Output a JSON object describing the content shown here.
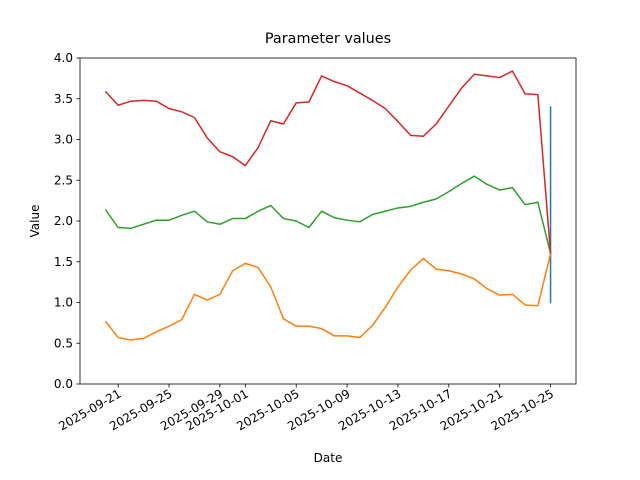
{
  "chart_data": {
    "type": "line",
    "title": "Parameter values",
    "x_label": "Date",
    "y_label": "Value",
    "xlim": [
      "2025-09-18",
      "2025-10-27"
    ],
    "ylim": [
      0,
      4
    ],
    "xticks": [
      "2025-09-21",
      "2025-09-25",
      "2025-09-29",
      "2025-10-01",
      "2025-10-05",
      "2025-10-09",
      "2025-10-13",
      "2025-10-17",
      "2025-10-21",
      "2025-10-25"
    ],
    "yticks": [
      {
        "value": 0,
        "label": "0.0"
      },
      {
        "value": 0.5,
        "label": "0.5"
      },
      {
        "value": 1,
        "label": "1.0"
      },
      {
        "value": 1.5,
        "label": "1.5"
      },
      {
        "value": 2,
        "label": "2.0"
      },
      {
        "value": 2.5,
        "label": "2.5"
      },
      {
        "value": 3,
        "label": "3.0"
      },
      {
        "value": 3.5,
        "label": "3.5"
      },
      {
        "value": 4,
        "label": "4.0"
      }
    ],
    "grid": false,
    "series": [
      {
        "color": "#1f77b4",
        "x": [
          "2025-10-25",
          "2025-10-25",
          "2025-10-25",
          "2025-10-25"
        ],
        "values": [
          1.28,
          1.0,
          3.4,
          3.0
        ]
      },
      {
        "color": "#ff7f0e",
        "x": [
          "2025-09-20",
          "2025-09-21",
          "2025-09-22",
          "2025-09-23",
          "2025-09-24",
          "2025-09-25",
          "2025-09-26",
          "2025-09-27",
          "2025-09-28",
          "2025-09-29",
          "2025-09-30",
          "2025-10-01",
          "2025-10-02",
          "2025-10-03",
          "2025-10-04",
          "2025-10-05",
          "2025-10-06",
          "2025-10-07",
          "2025-10-08",
          "2025-10-09",
          "2025-10-10",
          "2025-10-11",
          "2025-10-12",
          "2025-10-13",
          "2025-10-14",
          "2025-10-15",
          "2025-10-16",
          "2025-10-17",
          "2025-10-18",
          "2025-10-19",
          "2025-10-20",
          "2025-10-21",
          "2025-10-22",
          "2025-10-23",
          "2025-10-24",
          "2025-10-25"
        ],
        "values": [
          0.77,
          0.57,
          0.54,
          0.56,
          0.64,
          0.71,
          0.79,
          1.1,
          1.03,
          1.1,
          1.39,
          1.48,
          1.43,
          1.19,
          0.8,
          0.71,
          0.71,
          0.68,
          0.59,
          0.59,
          0.57,
          0.72,
          0.94,
          1.19,
          1.4,
          1.54,
          1.41,
          1.39,
          1.35,
          1.29,
          1.17,
          1.09,
          1.1,
          0.97,
          0.96,
          1.6
        ]
      },
      {
        "color": "#2ca02c",
        "x": [
          "2025-09-20",
          "2025-09-21",
          "2025-09-22",
          "2025-09-23",
          "2025-09-24",
          "2025-09-25",
          "2025-09-26",
          "2025-09-27",
          "2025-09-28",
          "2025-09-29",
          "2025-09-30",
          "2025-10-01",
          "2025-10-02",
          "2025-10-03",
          "2025-10-04",
          "2025-10-05",
          "2025-10-06",
          "2025-10-07",
          "2025-10-08",
          "2025-10-09",
          "2025-10-10",
          "2025-10-11",
          "2025-10-12",
          "2025-10-13",
          "2025-10-14",
          "2025-10-15",
          "2025-10-16",
          "2025-10-17",
          "2025-10-18",
          "2025-10-19",
          "2025-10-20",
          "2025-10-21",
          "2025-10-22",
          "2025-10-23",
          "2025-10-24",
          "2025-10-25"
        ],
        "values": [
          2.14,
          1.92,
          1.91,
          1.96,
          2.01,
          2.01,
          2.07,
          2.12,
          1.99,
          1.96,
          2.03,
          2.03,
          2.12,
          2.19,
          2.03,
          2.0,
          1.92,
          2.12,
          2.04,
          2.01,
          1.99,
          2.08,
          2.12,
          2.16,
          2.18,
          2.23,
          2.27,
          2.36,
          2.46,
          2.55,
          2.45,
          2.38,
          2.41,
          2.2,
          2.23,
          1.6
        ]
      },
      {
        "color": "#d62728",
        "x": [
          "2025-09-20",
          "2025-09-21",
          "2025-09-22",
          "2025-09-23",
          "2025-09-24",
          "2025-09-25",
          "2025-09-26",
          "2025-09-27",
          "2025-09-28",
          "2025-09-29",
          "2025-09-30",
          "2025-10-01",
          "2025-10-02",
          "2025-10-03",
          "2025-10-04",
          "2025-10-05",
          "2025-10-06",
          "2025-10-07",
          "2025-10-08",
          "2025-10-09",
          "2025-10-10",
          "2025-10-11",
          "2025-10-12",
          "2025-10-13",
          "2025-10-14",
          "2025-10-15",
          "2025-10-16",
          "2025-10-17",
          "2025-10-18",
          "2025-10-19",
          "2025-10-20",
          "2025-10-21",
          "2025-10-22",
          "2025-10-23",
          "2025-10-24",
          "2025-10-25"
        ],
        "values": [
          3.59,
          3.42,
          3.47,
          3.48,
          3.47,
          3.38,
          3.34,
          3.27,
          3.02,
          2.85,
          2.79,
          2.68,
          2.9,
          3.23,
          3.19,
          3.45,
          3.46,
          3.78,
          3.71,
          3.66,
          3.57,
          3.48,
          3.38,
          3.22,
          3.05,
          3.04,
          3.19,
          3.41,
          3.63,
          3.8,
          3.78,
          3.76,
          3.84,
          3.56,
          3.55,
          1.6
        ]
      }
    ]
  }
}
